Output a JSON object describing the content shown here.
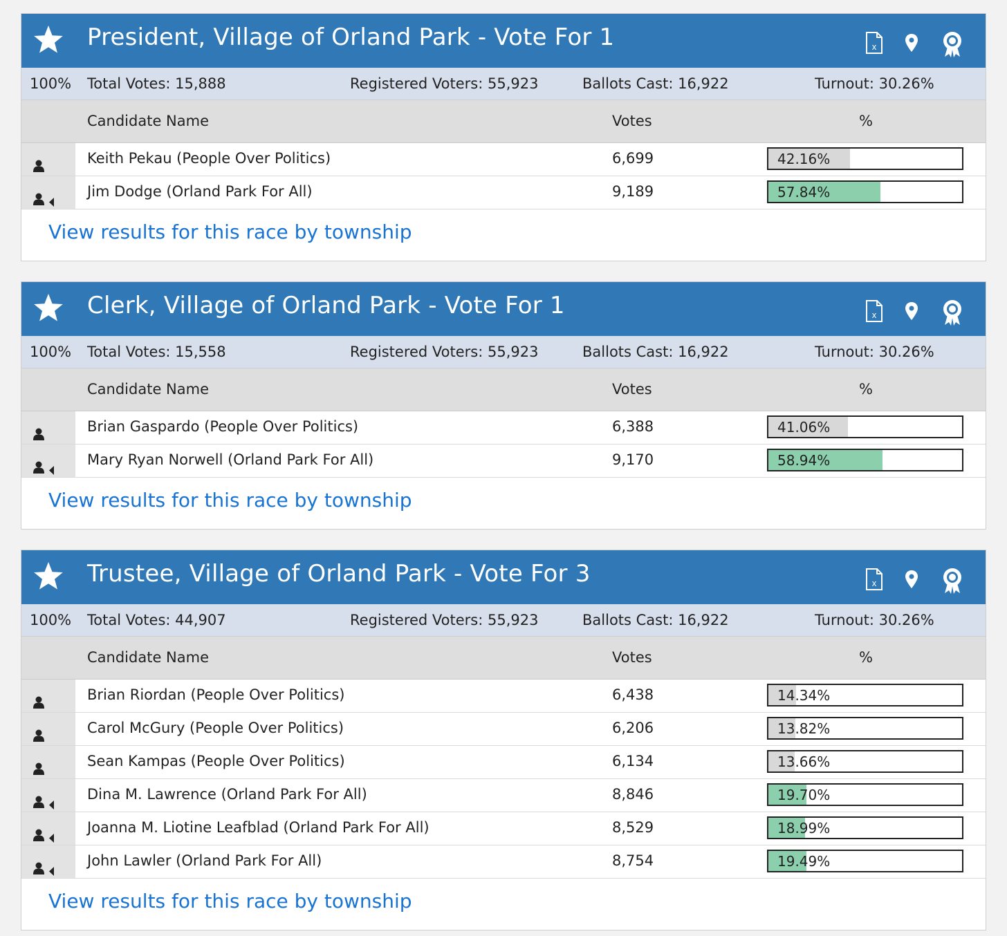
{
  "colors": {
    "header_bg": "#3179b6",
    "stats_bg": "#d8dfec",
    "columns_bg": "#dedede",
    "winner_bar": "#8ccfac",
    "loser_bar": "#d8d8d8",
    "link": "#1873d3"
  },
  "icons": {
    "favorite": "star-icon",
    "export": "excel-file-icon",
    "map": "map-pin-icon",
    "certified": "award-ribbon-icon",
    "candidate": "person-icon",
    "winner_marker": "caret-left-icon"
  },
  "races": [
    {
      "title": "President, Village of Orland Park - Vote For 1",
      "precincts_pct": "100%",
      "total_votes": "Total Votes: 15,888",
      "registered_voters": "Registered Voters: 55,923",
      "ballots_cast": "Ballots Cast: 16,922",
      "turnout": "Turnout: 30.26%",
      "col_name": "Candidate Name",
      "col_votes": "Votes",
      "col_pct": "%",
      "candidates": [
        {
          "name": "Keith Pekau (People Over Politics)",
          "votes": "6,699",
          "pct_label": "42.16%",
          "pct": 42.16,
          "winner": false
        },
        {
          "name": "Jim Dodge (Orland Park For All)",
          "votes": "9,189",
          "pct_label": "57.84%",
          "pct": 57.84,
          "winner": true
        }
      ],
      "link": "View results for this race by township"
    },
    {
      "title": "Clerk, Village of Orland Park - Vote For 1",
      "precincts_pct": "100%",
      "total_votes": "Total Votes: 15,558",
      "registered_voters": "Registered Voters: 55,923",
      "ballots_cast": "Ballots Cast: 16,922",
      "turnout": "Turnout: 30.26%",
      "col_name": "Candidate Name",
      "col_votes": "Votes",
      "col_pct": "%",
      "candidates": [
        {
          "name": "Brian Gaspardo (People Over Politics)",
          "votes": "6,388",
          "pct_label": "41.06%",
          "pct": 41.06,
          "winner": false
        },
        {
          "name": "Mary Ryan Norwell (Orland Park For All)",
          "votes": "9,170",
          "pct_label": "58.94%",
          "pct": 58.94,
          "winner": true
        }
      ],
      "link": "View results for this race by township"
    },
    {
      "title": "Trustee, Village of Orland Park - Vote For 3",
      "precincts_pct": "100%",
      "total_votes": "Total Votes: 44,907",
      "registered_voters": "Registered Voters: 55,923",
      "ballots_cast": "Ballots Cast: 16,922",
      "turnout": "Turnout: 30.26%",
      "col_name": "Candidate Name",
      "col_votes": "Votes",
      "col_pct": "%",
      "candidates": [
        {
          "name": "Brian Riordan (People Over Politics)",
          "votes": "6,438",
          "pct_label": "14.34%",
          "pct": 14.34,
          "winner": false
        },
        {
          "name": "Carol McGury (People Over Politics)",
          "votes": "6,206",
          "pct_label": "13.82%",
          "pct": 13.82,
          "winner": false
        },
        {
          "name": "Sean Kampas (People Over Politics)",
          "votes": "6,134",
          "pct_label": "13.66%",
          "pct": 13.66,
          "winner": false
        },
        {
          "name": "Dina M. Lawrence (Orland Park For All)",
          "votes": "8,846",
          "pct_label": "19.70%",
          "pct": 19.7,
          "winner": true
        },
        {
          "name": "Joanna M. Liotine Leafblad (Orland Park For All)",
          "votes": "8,529",
          "pct_label": "18.99%",
          "pct": 18.99,
          "winner": true
        },
        {
          "name": "John Lawler (Orland Park For All)",
          "votes": "8,754",
          "pct_label": "19.49%",
          "pct": 19.49,
          "winner": true
        }
      ],
      "link": "View results for this race by township"
    }
  ]
}
